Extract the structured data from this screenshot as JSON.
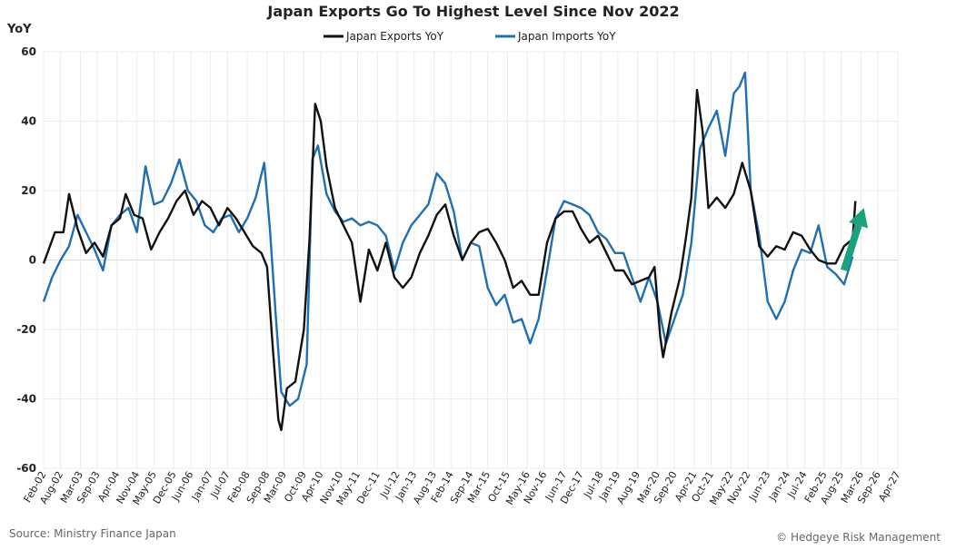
{
  "chart_data": {
    "type": "line",
    "title": "Japan Exports Go To Highest Level Since Nov 2022",
    "ylabel": "YoY",
    "ylim": [
      -60,
      60
    ],
    "yticks": [
      60,
      40,
      20,
      0,
      -20,
      -40,
      -60
    ],
    "xlim": [
      "2002-02",
      "2027-04"
    ],
    "xticks": [
      "Feb-02",
      "Aug-02",
      "Mar-03",
      "Sep-03",
      "Apr-04",
      "Nov-04",
      "May-05",
      "Dec-05",
      "Jun-06",
      "Jan-07",
      "Jul-07",
      "Feb-08",
      "Sep-08",
      "Mar-09",
      "Oct-09",
      "Apr-10",
      "Nov-10",
      "May-11",
      "Dec-11",
      "Jul-12",
      "Jan-13",
      "Aug-13",
      "Feb-14",
      "Sep-14",
      "Mar-15",
      "Oct-15",
      "May-16",
      "Nov-16",
      "Jun-17",
      "Dec-17",
      "Jul-18",
      "Jan-19",
      "Aug-19",
      "Mar-20",
      "Sep-20",
      "Apr-21",
      "Oct-21",
      "May-22",
      "Nov-22",
      "Jun-23",
      "Jan-24",
      "Jul-24",
      "Feb-25",
      "Aug-25",
      "Mar-26",
      "Sep-26",
      "Apr-27"
    ],
    "legend_position": "top-center",
    "grid": true,
    "series": [
      {
        "name": "Japan Exports YoY",
        "color": "#111111",
        "points": [
          [
            "2002-02",
            -1
          ],
          [
            "2002-06",
            8
          ],
          [
            "2002-09",
            8
          ],
          [
            "2002-11",
            19
          ],
          [
            "2003-02",
            9
          ],
          [
            "2003-05",
            2
          ],
          [
            "2003-08",
            5
          ],
          [
            "2003-11",
            1
          ],
          [
            "2004-02",
            10
          ],
          [
            "2004-05",
            12
          ],
          [
            "2004-07",
            19
          ],
          [
            "2004-10",
            13
          ],
          [
            "2005-01",
            12
          ],
          [
            "2005-04",
            3
          ],
          [
            "2005-07",
            8
          ],
          [
            "2005-10",
            12
          ],
          [
            "2006-01",
            17
          ],
          [
            "2006-04",
            20
          ],
          [
            "2006-07",
            13
          ],
          [
            "2006-10",
            17
          ],
          [
            "2007-01",
            15
          ],
          [
            "2007-04",
            10
          ],
          [
            "2007-07",
            15
          ],
          [
            "2007-10",
            12
          ],
          [
            "2008-01",
            8
          ],
          [
            "2008-04",
            4
          ],
          [
            "2008-07",
            2
          ],
          [
            "2008-09",
            -2
          ],
          [
            "2008-11",
            -25
          ],
          [
            "2009-01",
            -46
          ],
          [
            "2009-02",
            -49
          ],
          [
            "2009-04",
            -37
          ],
          [
            "2009-07",
            -35
          ],
          [
            "2009-10",
            -20
          ],
          [
            "2009-12",
            6
          ],
          [
            "2010-02",
            45
          ],
          [
            "2010-04",
            40
          ],
          [
            "2010-06",
            27
          ],
          [
            "2010-09",
            15
          ],
          [
            "2010-12",
            10
          ],
          [
            "2011-03",
            5
          ],
          [
            "2011-06",
            -12
          ],
          [
            "2011-09",
            3
          ],
          [
            "2011-12",
            -3
          ],
          [
            "2012-03",
            5
          ],
          [
            "2012-06",
            -5
          ],
          [
            "2012-09",
            -8
          ],
          [
            "2012-12",
            -5
          ],
          [
            "2013-03",
            2
          ],
          [
            "2013-06",
            7
          ],
          [
            "2013-09",
            13
          ],
          [
            "2013-12",
            16
          ],
          [
            "2014-03",
            7
          ],
          [
            "2014-06",
            0
          ],
          [
            "2014-09",
            5
          ],
          [
            "2014-12",
            8
          ],
          [
            "2015-03",
            9
          ],
          [
            "2015-06",
            5
          ],
          [
            "2015-09",
            0
          ],
          [
            "2015-12",
            -8
          ],
          [
            "2016-03",
            -6
          ],
          [
            "2016-06",
            -10
          ],
          [
            "2016-09",
            -10
          ],
          [
            "2016-12",
            5
          ],
          [
            "2017-03",
            12
          ],
          [
            "2017-06",
            14
          ],
          [
            "2017-09",
            14
          ],
          [
            "2017-12",
            9
          ],
          [
            "2018-03",
            5
          ],
          [
            "2018-06",
            7
          ],
          [
            "2018-09",
            2
          ],
          [
            "2018-12",
            -3
          ],
          [
            "2019-03",
            -3
          ],
          [
            "2019-06",
            -7
          ],
          [
            "2019-09",
            -6
          ],
          [
            "2019-12",
            -5
          ],
          [
            "2020-02",
            -2
          ],
          [
            "2020-04",
            -22
          ],
          [
            "2020-05",
            -28
          ],
          [
            "2020-08",
            -15
          ],
          [
            "2020-11",
            -5
          ],
          [
            "2021-01",
            6
          ],
          [
            "2021-03",
            18
          ],
          [
            "2021-05",
            49
          ],
          [
            "2021-07",
            37
          ],
          [
            "2021-09",
            15
          ],
          [
            "2021-12",
            18
          ],
          [
            "2022-03",
            15
          ],
          [
            "2022-06",
            19
          ],
          [
            "2022-09",
            28
          ],
          [
            "2022-12",
            20
          ],
          [
            "2023-03",
            4
          ],
          [
            "2023-06",
            1
          ],
          [
            "2023-09",
            4
          ],
          [
            "2023-12",
            3
          ],
          [
            "2024-03",
            8
          ],
          [
            "2024-06",
            7
          ],
          [
            "2024-09",
            3
          ],
          [
            "2024-12",
            0
          ],
          [
            "2025-03",
            -1
          ],
          [
            "2025-06",
            -1
          ],
          [
            "2025-09",
            4
          ],
          [
            "2025-12",
            6
          ],
          [
            "2026-01",
            17
          ]
        ]
      },
      {
        "name": "Japan Imports YoY",
        "color": "#1f6fb2",
        "points": [
          [
            "2002-02",
            -12
          ],
          [
            "2002-05",
            -5
          ],
          [
            "2002-08",
            0
          ],
          [
            "2002-11",
            4
          ],
          [
            "2003-02",
            13
          ],
          [
            "2003-05",
            8
          ],
          [
            "2003-08",
            3
          ],
          [
            "2003-11",
            -3
          ],
          [
            "2004-02",
            10
          ],
          [
            "2004-05",
            13
          ],
          [
            "2004-08",
            15
          ],
          [
            "2004-11",
            8
          ],
          [
            "2005-02",
            27
          ],
          [
            "2005-05",
            16
          ],
          [
            "2005-08",
            17
          ],
          [
            "2005-11",
            22
          ],
          [
            "2006-02",
            29
          ],
          [
            "2006-05",
            20
          ],
          [
            "2006-08",
            17
          ],
          [
            "2006-11",
            10
          ],
          [
            "2007-02",
            8
          ],
          [
            "2007-05",
            12
          ],
          [
            "2007-08",
            13
          ],
          [
            "2007-11",
            8
          ],
          [
            "2008-02",
            12
          ],
          [
            "2008-05",
            18
          ],
          [
            "2008-08",
            28
          ],
          [
            "2008-10",
            9
          ],
          [
            "2008-12",
            -15
          ],
          [
            "2009-02",
            -38
          ],
          [
            "2009-05",
            -42
          ],
          [
            "2009-08",
            -40
          ],
          [
            "2009-11",
            -30
          ],
          [
            "2010-01",
            29
          ],
          [
            "2010-03",
            33
          ],
          [
            "2010-06",
            19
          ],
          [
            "2010-09",
            14
          ],
          [
            "2010-12",
            11
          ],
          [
            "2011-03",
            12
          ],
          [
            "2011-06",
            10
          ],
          [
            "2011-09",
            11
          ],
          [
            "2011-12",
            10
          ],
          [
            "2012-03",
            7
          ],
          [
            "2012-06",
            -3
          ],
          [
            "2012-09",
            5
          ],
          [
            "2012-12",
            10
          ],
          [
            "2013-03",
            13
          ],
          [
            "2013-06",
            16
          ],
          [
            "2013-09",
            25
          ],
          [
            "2013-12",
            22
          ],
          [
            "2014-03",
            14
          ],
          [
            "2014-06",
            0
          ],
          [
            "2014-09",
            5
          ],
          [
            "2014-12",
            4
          ],
          [
            "2015-03",
            -8
          ],
          [
            "2015-06",
            -13
          ],
          [
            "2015-09",
            -10
          ],
          [
            "2015-12",
            -18
          ],
          [
            "2016-03",
            -17
          ],
          [
            "2016-06",
            -24
          ],
          [
            "2016-09",
            -17
          ],
          [
            "2016-12",
            -3
          ],
          [
            "2017-03",
            12
          ],
          [
            "2017-06",
            17
          ],
          [
            "2017-09",
            16
          ],
          [
            "2017-12",
            15
          ],
          [
            "2018-03",
            13
          ],
          [
            "2018-06",
            8
          ],
          [
            "2018-09",
            6
          ],
          [
            "2018-12",
            2
          ],
          [
            "2019-03",
            2
          ],
          [
            "2019-06",
            -5
          ],
          [
            "2019-09",
            -12
          ],
          [
            "2019-12",
            -5
          ],
          [
            "2020-03",
            -12
          ],
          [
            "2020-06",
            -24
          ],
          [
            "2020-09",
            -17
          ],
          [
            "2020-12",
            -10
          ],
          [
            "2021-03",
            5
          ],
          [
            "2021-06",
            32
          ],
          [
            "2021-09",
            38
          ],
          [
            "2021-12",
            43
          ],
          [
            "2022-03",
            30
          ],
          [
            "2022-06",
            48
          ],
          [
            "2022-08",
            50
          ],
          [
            "2022-10",
            54
          ],
          [
            "2022-12",
            20
          ],
          [
            "2023-03",
            7
          ],
          [
            "2023-06",
            -12
          ],
          [
            "2023-09",
            -17
          ],
          [
            "2023-12",
            -12
          ],
          [
            "2024-03",
            -3
          ],
          [
            "2024-06",
            3
          ],
          [
            "2024-09",
            2
          ],
          [
            "2024-12",
            10
          ],
          [
            "2025-03",
            -2
          ],
          [
            "2025-06",
            -4
          ],
          [
            "2025-09",
            -7
          ],
          [
            "2025-12",
            1
          ]
        ]
      }
    ],
    "annotations": [
      {
        "type": "arrow",
        "color": "#1aa37a",
        "from": [
          "2025-09",
          -3
        ],
        "to": [
          "2026-04",
          15
        ]
      }
    ]
  },
  "footer": {
    "source": "Source: Ministry Finance Japan",
    "copyright": "© Hedgeye Risk Management"
  }
}
